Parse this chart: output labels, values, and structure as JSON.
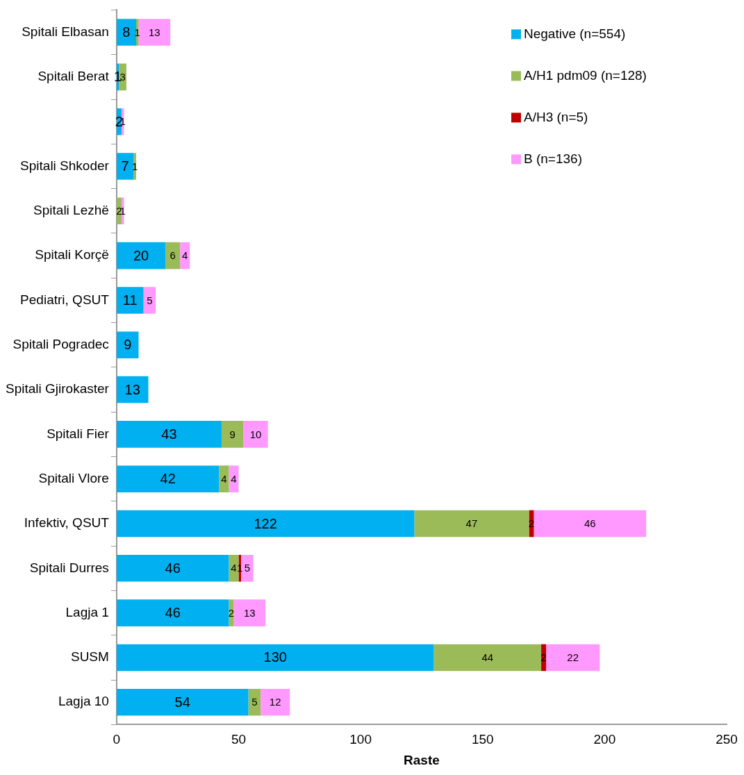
{
  "chart_data": {
    "type": "bar",
    "orientation": "horizontal",
    "stacked": true,
    "xlabel": "Raste",
    "categories": [
      "Spitali Elbasan",
      "Spitali Berat",
      null,
      "Spitali Shkoder",
      "Spitali Lezhë",
      "Spitali Korçë",
      "Pediatri, QSUT",
      "Spitali Pogradec",
      "Spitali Gjirokaster",
      "Spitali Fier",
      "Spitali Vlore",
      "Infektiv, QSUT",
      "Spitali Durres",
      "Lagja 1",
      "SUSM",
      "Lagja 10"
    ],
    "series": [
      {
        "name": "Negative (n=554)",
        "color": "#00b0f0",
        "values": [
          8,
          1,
          2,
          7,
          null,
          20,
          11,
          9,
          13,
          43,
          42,
          122,
          46,
          46,
          130,
          54
        ]
      },
      {
        "name": "A/H1 pdm09 (n=128)",
        "color": "#9bbb59",
        "values": [
          1,
          3,
          null,
          1,
          2,
          6,
          null,
          null,
          null,
          9,
          4,
          47,
          4,
          2,
          44,
          5
        ]
      },
      {
        "name": "A/H3 (n=5)",
        "color": "#c00000",
        "values": [
          null,
          null,
          null,
          null,
          null,
          null,
          null,
          null,
          null,
          null,
          null,
          2,
          1,
          null,
          2,
          null
        ]
      },
      {
        "name": "B (n=136)",
        "color": "#ff99ff",
        "values": [
          13,
          null,
          1,
          null,
          1,
          4,
          5,
          null,
          null,
          10,
          4,
          46,
          5,
          13,
          22,
          12
        ]
      }
    ],
    "xlim": [
      0,
      250
    ],
    "xticks": [
      0,
      50,
      100,
      150,
      200,
      250
    ],
    "data_labels": true,
    "legend": "top right",
    "grid": false
  }
}
